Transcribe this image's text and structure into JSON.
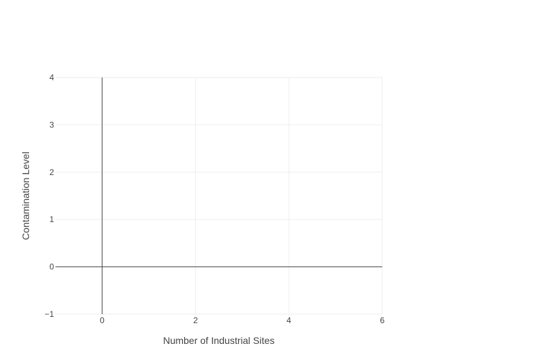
{
  "chart_data": {
    "type": "scatter",
    "title": "",
    "xlabel": "Number of Industrial Sites",
    "ylabel": "Contamination Level",
    "xlim": [
      -1,
      6
    ],
    "ylim": [
      -1,
      4
    ],
    "x_ticks": [
      0,
      2,
      4,
      6
    ],
    "x_tick_labels": [
      "0",
      "2",
      "4",
      "6"
    ],
    "y_ticks": [
      -1,
      0,
      1,
      2,
      3,
      4
    ],
    "y_tick_labels": [
      "−1",
      "0",
      "1",
      "2",
      "3",
      "4"
    ],
    "grid": true,
    "zero_lines": true,
    "legend": "none",
    "series": [],
    "colors": {
      "grid": "#eeeeee",
      "zeroline": "#444444",
      "text": "#444444",
      "background": "#ffffff"
    }
  }
}
